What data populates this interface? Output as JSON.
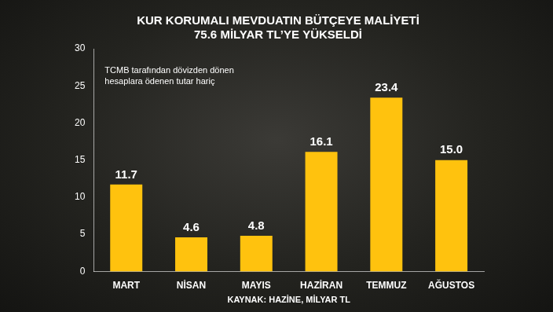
{
  "chart_data": {
    "type": "bar",
    "title": [
      "KUR KORUMALI MEVDUATIN BÜTÇEYE MALİYETİ",
      "75.6 MİLYAR TL’YE YÜKSELDİ"
    ],
    "subtitle": "TCMB tarafından dövizden dönen hesaplara ödenen tutar hariç",
    "source": "KAYNAK: HAZİNE, MİLYAR TL",
    "categories": [
      "MART",
      "NİSAN",
      "MAYIS",
      "HAZİRAN",
      "TEMMUZ",
      "AĞUSTOS"
    ],
    "values": [
      11.7,
      4.6,
      4.8,
      16.1,
      23.4,
      15.0
    ],
    "value_labels": [
      "11.7",
      "4.6",
      "4.8",
      "16.1",
      "23.4",
      "15.0"
    ],
    "color": "#ffc20e",
    "ylim": [
      0,
      30
    ],
    "yticks": [
      0,
      5,
      10,
      15,
      20,
      25,
      30
    ],
    "grid": false,
    "data_labels": true
  }
}
